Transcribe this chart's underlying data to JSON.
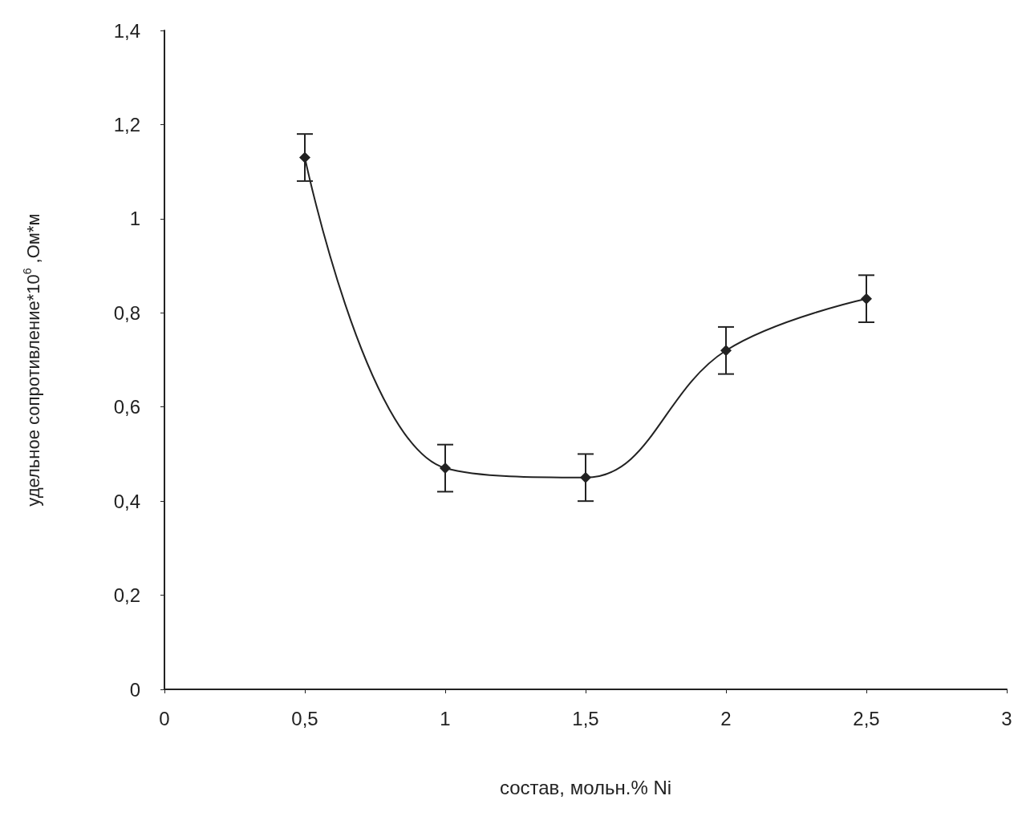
{
  "chart_data": {
    "type": "line",
    "xlabel": "состав, мольн.% Ni",
    "ylabel": "удельное сопротивление*10$^{6}$ ,Ом*м",
    "x": [
      0.5,
      1,
      1.5,
      2,
      2.5
    ],
    "series": [
      {
        "color": "#222222",
        "values": [
          1.13,
          0.47,
          0.45,
          0.72,
          0.83
        ],
        "errors": [
          0.05,
          0.05,
          0.05,
          0.05,
          0.05
        ]
      }
    ],
    "xlim": [
      0,
      3
    ],
    "xticks": [
      0,
      {
        "value": 0.5,
        "label": "0,5"
      },
      1,
      {
        "value": 1.5,
        "label": "1,5"
      },
      2,
      {
        "value": 2.5,
        "label": "2,5"
      },
      3
    ],
    "ylim": [
      0,
      1.4
    ],
    "yticks": [
      0,
      {
        "value": 0.2,
        "label": "0,2"
      },
      {
        "value": 0.4,
        "label": "0,4"
      },
      {
        "value": 0.6,
        "label": "0,6"
      },
      {
        "value": 0.8,
        "label": "0,8"
      },
      1,
      {
        "value": 1.2,
        "label": "1,2"
      },
      {
        "value": 1.4,
        "label": "1,4"
      }
    ],
    "grid": false,
    "marker": "diamond",
    "line_style": "solid"
  }
}
